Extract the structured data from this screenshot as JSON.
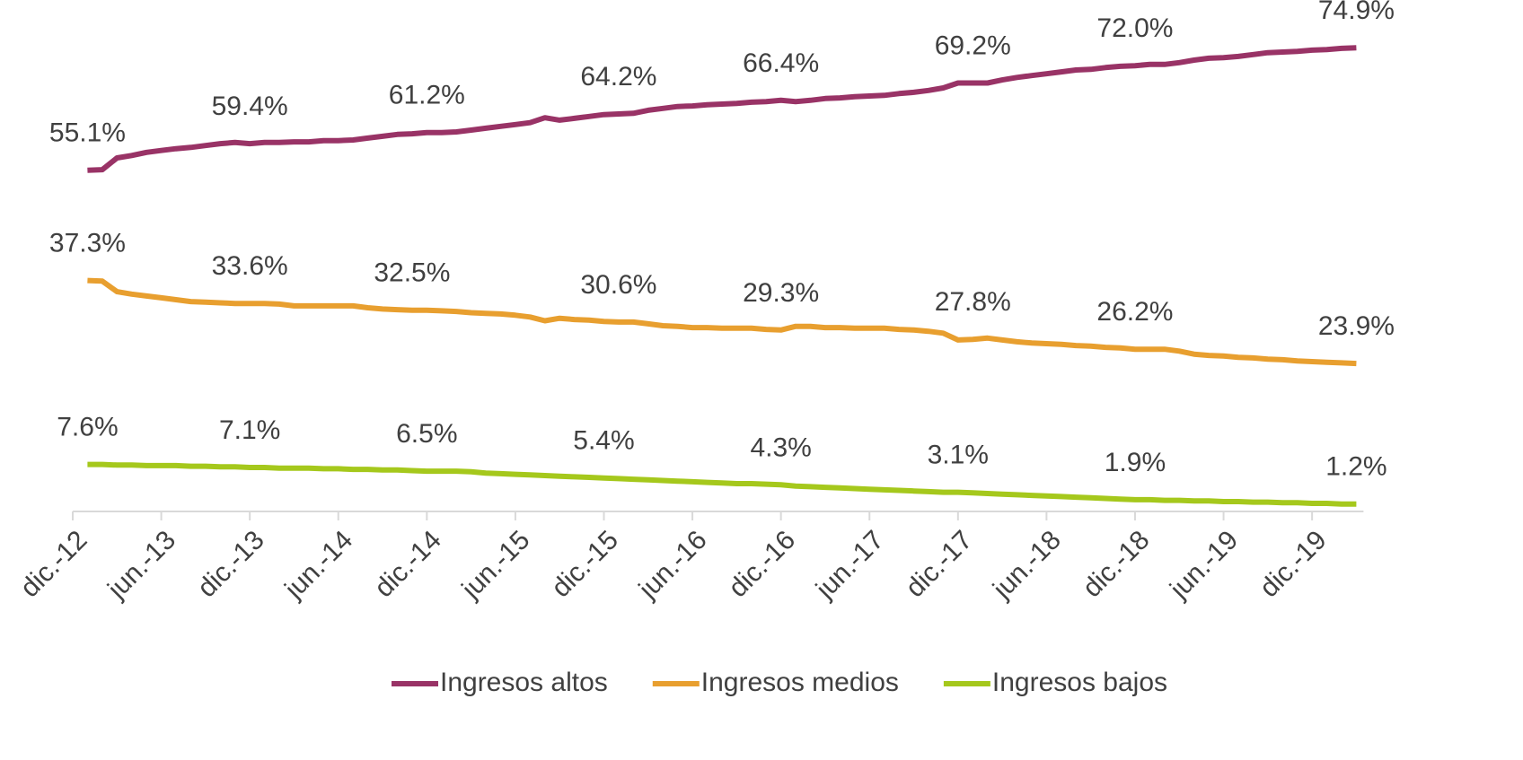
{
  "chart_data": {
    "type": "line",
    "categories": [
      "dic.-12",
      null,
      null,
      null,
      null,
      null,
      "jun.-13",
      null,
      null,
      null,
      null,
      null,
      "dic.-13",
      null,
      null,
      null,
      null,
      null,
      "jun.-14",
      null,
      null,
      null,
      null,
      null,
      "dic.-14",
      null,
      null,
      null,
      null,
      null,
      "jun.-15",
      null,
      null,
      null,
      null,
      null,
      "dic.-15",
      null,
      null,
      null,
      null,
      null,
      "jun.-16",
      null,
      null,
      null,
      null,
      null,
      "dic.-16",
      null,
      null,
      null,
      null,
      null,
      "jun.-17",
      null,
      null,
      null,
      null,
      null,
      "dic.-17",
      null,
      null,
      null,
      null,
      null,
      "jun.-18",
      null,
      null,
      null,
      null,
      null,
      "dic.-18",
      null,
      null,
      null,
      null,
      null,
      "jun.-19",
      null,
      null,
      null,
      null,
      null,
      "dic.-19",
      null,
      null,
      null
    ],
    "series": [
      {
        "name": "Ingresos altos",
        "color": "#993366",
        "values": [
          null,
          55.1,
          55.2,
          57.1,
          57.5,
          58.0,
          58.3,
          58.6,
          58.8,
          59.1,
          59.4,
          59.6,
          59.4,
          59.6,
          59.6,
          59.7,
          59.7,
          59.9,
          59.9,
          60.0,
          60.3,
          60.6,
          60.9,
          61.0,
          61.2,
          61.2,
          61.3,
          61.6,
          61.9,
          62.2,
          62.5,
          62.8,
          63.6,
          63.2,
          63.5,
          63.8,
          64.1,
          64.2,
          64.3,
          64.8,
          65.1,
          65.4,
          65.5,
          65.7,
          65.8,
          65.9,
          66.1,
          66.2,
          66.4,
          66.2,
          66.4,
          66.7,
          66.8,
          67.0,
          67.1,
          67.2,
          67.5,
          67.7,
          68.0,
          68.4,
          69.2,
          69.2,
          69.2,
          69.7,
          70.1,
          70.4,
          70.7,
          71.0,
          71.3,
          71.4,
          71.7,
          71.9,
          72.0,
          72.2,
          72.2,
          72.5,
          72.9,
          73.2,
          73.3,
          73.5,
          73.8,
          74.1,
          74.2,
          74.3,
          74.5,
          74.6,
          74.8,
          74.9
        ],
        "value_labels": [
          null,
          "55.1%",
          null,
          null,
          null,
          null,
          null,
          null,
          null,
          null,
          null,
          null,
          "59.4%",
          null,
          null,
          null,
          null,
          null,
          null,
          null,
          null,
          null,
          null,
          null,
          "61.2%",
          null,
          null,
          null,
          null,
          null,
          null,
          null,
          null,
          null,
          null,
          null,
          null,
          "64.2%",
          null,
          null,
          null,
          null,
          null,
          null,
          null,
          null,
          null,
          null,
          "66.4%",
          null,
          null,
          null,
          null,
          null,
          null,
          null,
          null,
          null,
          null,
          null,
          null,
          "69.2%",
          null,
          null,
          null,
          null,
          null,
          null,
          null,
          null,
          null,
          null,
          "72.0%",
          null,
          null,
          null,
          null,
          null,
          null,
          null,
          null,
          null,
          null,
          null,
          null,
          null,
          null,
          "74.9%"
        ]
      },
      {
        "name": "Ingresos medios",
        "color": "#e89f2f",
        "values": [
          null,
          37.3,
          37.2,
          35.5,
          35.1,
          34.8,
          34.5,
          34.2,
          33.9,
          33.8,
          33.7,
          33.6,
          33.6,
          33.6,
          33.5,
          33.2,
          33.2,
          33.2,
          33.2,
          33.2,
          32.9,
          32.7,
          32.6,
          32.5,
          32.5,
          32.4,
          32.3,
          32.1,
          32.0,
          31.9,
          31.7,
          31.4,
          30.8,
          31.2,
          31.0,
          30.9,
          30.7,
          30.6,
          30.6,
          30.3,
          30.0,
          29.9,
          29.7,
          29.7,
          29.6,
          29.6,
          29.6,
          29.4,
          29.3,
          29.9,
          29.9,
          29.7,
          29.7,
          29.6,
          29.6,
          29.6,
          29.4,
          29.3,
          29.1,
          28.8,
          27.7,
          27.8,
          28.0,
          27.7,
          27.4,
          27.2,
          27.1,
          27.0,
          26.8,
          26.7,
          26.5,
          26.4,
          26.2,
          26.2,
          26.2,
          25.9,
          25.4,
          25.2,
          25.1,
          24.9,
          24.8,
          24.6,
          24.5,
          24.3,
          24.2,
          24.1,
          24.0,
          23.9
        ],
        "value_labels": [
          null,
          "37.3%",
          null,
          null,
          null,
          null,
          null,
          null,
          null,
          null,
          null,
          null,
          "33.6%",
          null,
          null,
          null,
          null,
          null,
          null,
          null,
          null,
          null,
          null,
          "32.5%",
          null,
          null,
          null,
          null,
          null,
          null,
          null,
          null,
          null,
          null,
          null,
          null,
          null,
          "30.6%",
          null,
          null,
          null,
          null,
          null,
          null,
          null,
          null,
          null,
          null,
          "29.3%",
          null,
          null,
          null,
          null,
          null,
          null,
          null,
          null,
          null,
          null,
          null,
          null,
          "27.8%",
          null,
          null,
          null,
          null,
          null,
          null,
          null,
          null,
          null,
          null,
          "26.2%",
          null,
          null,
          null,
          null,
          null,
          null,
          null,
          null,
          null,
          null,
          null,
          null,
          null,
          null,
          "23.9%"
        ]
      },
      {
        "name": "Ingresos bajos",
        "color": "#a5c81c",
        "values": [
          null,
          7.6,
          7.6,
          7.5,
          7.5,
          7.4,
          7.4,
          7.4,
          7.3,
          7.3,
          7.2,
          7.2,
          7.1,
          7.1,
          7.0,
          7.0,
          7.0,
          6.9,
          6.9,
          6.8,
          6.8,
          6.7,
          6.7,
          6.6,
          6.5,
          6.5,
          6.5,
          6.4,
          6.2,
          6.1,
          6.0,
          5.9,
          5.8,
          5.7,
          5.6,
          5.5,
          5.4,
          5.3,
          5.2,
          5.1,
          5.0,
          4.9,
          4.8,
          4.7,
          4.6,
          4.5,
          4.5,
          4.4,
          4.3,
          4.1,
          4.0,
          3.9,
          3.8,
          3.7,
          3.6,
          3.5,
          3.4,
          3.3,
          3.2,
          3.1,
          3.1,
          3.0,
          2.9,
          2.8,
          2.7,
          2.6,
          2.5,
          2.4,
          2.3,
          2.2,
          2.1,
          2.0,
          1.9,
          1.9,
          1.8,
          1.8,
          1.7,
          1.7,
          1.6,
          1.6,
          1.5,
          1.5,
          1.4,
          1.4,
          1.3,
          1.3,
          1.2,
          1.2
        ],
        "value_labels": [
          null,
          "7.6%",
          null,
          null,
          null,
          null,
          null,
          null,
          null,
          null,
          null,
          null,
          "7.1%",
          null,
          null,
          null,
          null,
          null,
          null,
          null,
          null,
          null,
          null,
          null,
          "6.5%",
          null,
          null,
          null,
          null,
          null,
          null,
          null,
          null,
          null,
          null,
          null,
          "5.4%",
          null,
          null,
          null,
          null,
          null,
          null,
          null,
          null,
          null,
          null,
          null,
          "4.3%",
          null,
          null,
          null,
          null,
          null,
          null,
          null,
          null,
          null,
          null,
          null,
          "3.1%",
          null,
          null,
          null,
          null,
          null,
          null,
          null,
          null,
          null,
          null,
          null,
          "1.9%",
          null,
          null,
          null,
          null,
          null,
          null,
          null,
          null,
          null,
          null,
          null,
          null,
          null,
          null,
          "1.2%"
        ]
      }
    ],
    "ylim": [
      0,
      80
    ]
  }
}
